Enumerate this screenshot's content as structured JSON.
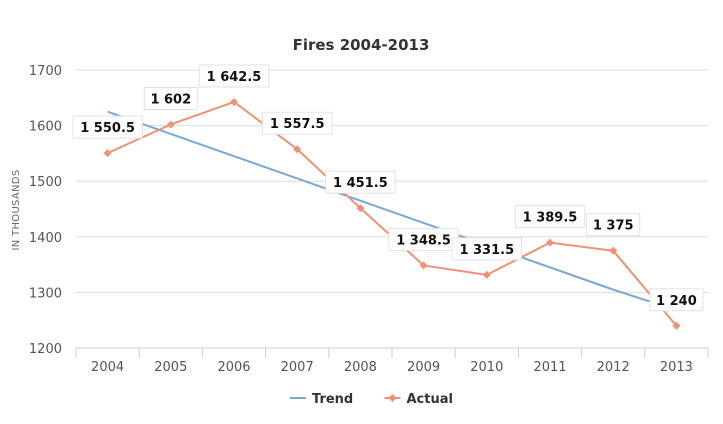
{
  "chart_data": {
    "type": "line",
    "title": "Fires 2004-2013",
    "xlabel": "",
    "ylabel": "IN THOUSANDS",
    "categories": [
      "2004",
      "2005",
      "2006",
      "2007",
      "2008",
      "2009",
      "2010",
      "2011",
      "2012",
      "2013"
    ],
    "ylim": [
      1200,
      1700
    ],
    "yticks": [
      1200,
      1300,
      1400,
      1500,
      1600,
      1700
    ],
    "grid": true,
    "legend": "bottom-center",
    "series": [
      {
        "name": "Trend",
        "type": "line",
        "color": "#7ba7d4",
        "values": [
          1625,
          1585,
          1545,
          1505,
          1465,
          1425,
          1385,
          1345,
          1305,
          1268
        ]
      },
      {
        "name": "Actual",
        "type": "line",
        "color": "#ee9176",
        "marker": "diamond",
        "values": [
          1550.5,
          1602,
          1642.5,
          1557.5,
          1451.5,
          1348.5,
          1331.5,
          1389.5,
          1375,
          1240
        ],
        "labels": [
          "1 550.5",
          "1 602",
          "1 642.5",
          "1 557.5",
          "1 451.5",
          "1 348.5",
          "1 331.5",
          "1 389.5",
          "1 375",
          "1 240"
        ]
      }
    ]
  }
}
